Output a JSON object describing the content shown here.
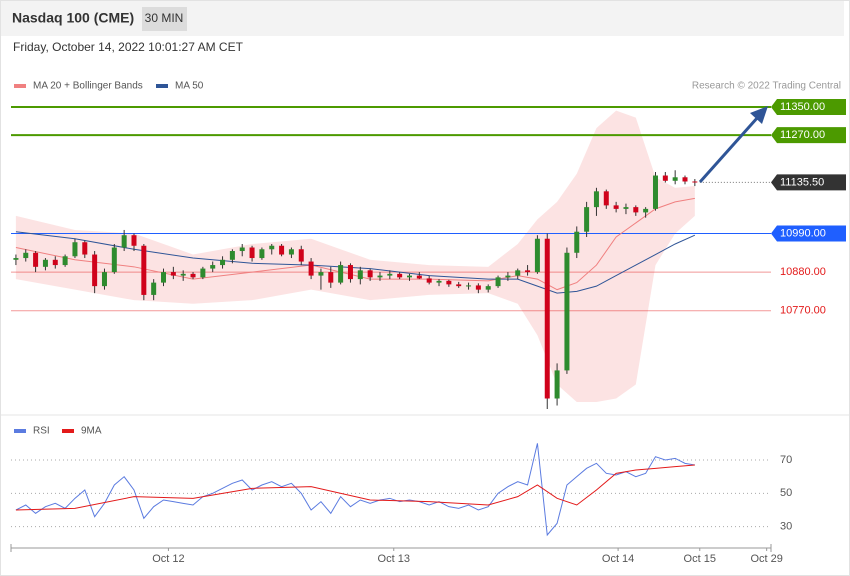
{
  "header": {
    "title": "Nasdaq 100 (CME)",
    "interval": "30 MIN",
    "datetime": "Friday, October 14, 2022 10:01:27 AM CET"
  },
  "chart_data": [
    {
      "type": "candlestick",
      "credit": "Research © 2022 Trading Central",
      "up_color": "#2e8b2e",
      "down_color": "#d0021b",
      "xlim": [
        -0.5,
        76.74
      ],
      "ylim": [
        10473,
        11484
      ],
      "ohlc": [
        [
          10915,
          10930,
          10900,
          10920
        ],
        [
          10920,
          10945,
          10910,
          10935
        ],
        [
          10935,
          10940,
          10880,
          10895
        ],
        [
          10895,
          10920,
          10885,
          10915
        ],
        [
          10915,
          10925,
          10890,
          10900
        ],
        [
          10900,
          10930,
          10895,
          10925
        ],
        [
          10925,
          10975,
          10920,
          10965
        ],
        [
          10965,
          10970,
          10920,
          10930
        ],
        [
          10930,
          10940,
          10820,
          10840
        ],
        [
          10840,
          10890,
          10830,
          10880
        ],
        [
          10880,
          10960,
          10875,
          10950
        ],
        [
          10950,
          11000,
          10940,
          10985
        ],
        [
          10985,
          10990,
          10940,
          10955
        ],
        [
          10955,
          10960,
          10800,
          10815
        ],
        [
          10815,
          10860,
          10800,
          10850
        ],
        [
          10850,
          10890,
          10840,
          10880
        ],
        [
          10880,
          10895,
          10860,
          10870
        ],
        [
          10870,
          10885,
          10855,
          10875
        ],
        [
          10875,
          10880,
          10860,
          10865
        ],
        [
          10865,
          10895,
          10860,
          10890
        ],
        [
          10890,
          10910,
          10880,
          10900
        ],
        [
          10900,
          10925,
          10890,
          10915
        ],
        [
          10915,
          10945,
          10905,
          10940
        ],
        [
          10940,
          10960,
          10925,
          10950
        ],
        [
          10950,
          10955,
          10910,
          10920
        ],
        [
          10920,
          10950,
          10915,
          10945
        ],
        [
          10945,
          10960,
          10930,
          10955
        ],
        [
          10955,
          10960,
          10925,
          10930
        ],
        [
          10930,
          10950,
          10920,
          10945
        ],
        [
          10945,
          10955,
          10900,
          10910
        ],
        [
          10910,
          10920,
          10860,
          10870
        ],
        [
          10870,
          10890,
          10830,
          10880
        ],
        [
          10880,
          10895,
          10835,
          10850
        ],
        [
          10850,
          10910,
          10845,
          10900
        ],
        [
          10900,
          10905,
          10850,
          10860
        ],
        [
          10860,
          10895,
          10845,
          10885
        ],
        [
          10885,
          10890,
          10855,
          10865
        ],
        [
          10865,
          10880,
          10855,
          10870
        ],
        [
          10870,
          10885,
          10860,
          10875
        ],
        [
          10875,
          10880,
          10860,
          10865
        ],
        [
          10865,
          10875,
          10855,
          10870
        ],
        [
          10870,
          10880,
          10860,
          10862
        ],
        [
          10862,
          10870,
          10845,
          10850
        ],
        [
          10850,
          10860,
          10840,
          10855
        ],
        [
          10855,
          10858,
          10838,
          10845
        ],
        [
          10845,
          10852,
          10835,
          10840
        ],
        [
          10840,
          10850,
          10830,
          10842
        ],
        [
          10842,
          10848,
          10820,
          10830
        ],
        [
          10830,
          10845,
          10822,
          10840
        ],
        [
          10840,
          10870,
          10835,
          10865
        ],
        [
          10865,
          10880,
          10855,
          10870
        ],
        [
          10870,
          10890,
          10860,
          10885
        ],
        [
          10885,
          10900,
          10870,
          10880
        ],
        [
          10880,
          10985,
          10875,
          10975
        ],
        [
          10975,
          10990,
          10490,
          10520
        ],
        [
          10520,
          10620,
          10500,
          10600
        ],
        [
          10600,
          10950,
          10590,
          10935
        ],
        [
          10935,
          11010,
          10920,
          10995
        ],
        [
          10995,
          11080,
          10980,
          11065
        ],
        [
          11065,
          11120,
          11040,
          11110
        ],
        [
          11110,
          11115,
          11060,
          11070
        ],
        [
          11070,
          11080,
          11050,
          11060
        ],
        [
          11060,
          11075,
          11045,
          11065
        ],
        [
          11065,
          11070,
          11040,
          11050
        ],
        [
          11050,
          11065,
          11035,
          11060
        ],
        [
          11060,
          11165,
          11055,
          11155
        ],
        [
          11155,
          11165,
          11135,
          11140
        ],
        [
          11140,
          11170,
          11130,
          11150
        ],
        [
          11150,
          11155,
          11130,
          11138
        ],
        [
          11138,
          11145,
          11125,
          11135.5
        ]
      ],
      "series": [
        {
          "name": "MA 20 + Bollinger Bands",
          "color": "#f08080",
          "x": [
            0,
            6,
            12,
            18,
            24,
            30,
            36,
            42,
            48,
            51,
            53,
            55,
            57,
            59,
            61,
            63,
            65,
            67,
            69
          ],
          "values": [
            10950,
            10915,
            10895,
            10860,
            10880,
            10900,
            10860,
            10860,
            10855,
            10870,
            10860,
            10830,
            10850,
            10900,
            10980,
            11020,
            11060,
            11080,
            11090
          ],
          "upper": [
            11040,
            11000,
            10990,
            10930,
            10960,
            10975,
            10915,
            10900,
            10895,
            10960,
            11030,
            11080,
            11160,
            11290,
            11340,
            11320,
            11150,
            11120,
            11125
          ],
          "lower": [
            10860,
            10830,
            10800,
            10790,
            10800,
            10830,
            10800,
            10815,
            10820,
            10790,
            10700,
            10560,
            10510,
            10510,
            10520,
            10560,
            10900,
            10990,
            11040
          ]
        },
        {
          "name": "MA 50",
          "color": "#2f5597",
          "x": [
            0,
            6,
            12,
            18,
            24,
            30,
            36,
            42,
            48,
            51,
            53,
            55,
            57,
            59,
            61,
            63,
            65,
            67,
            69
          ],
          "values": [
            10995,
            10975,
            10945,
            10920,
            10905,
            10900,
            10890,
            10870,
            10860,
            10860,
            10840,
            10820,
            10825,
            10840,
            10870,
            10900,
            10930,
            10960,
            10985
          ]
        }
      ],
      "levels": [
        {
          "value": 11350,
          "label": "11350.00",
          "color": "#4c9a00",
          "style": "box"
        },
        {
          "value": 11270,
          "label": "11270.00",
          "color": "#4c9a00",
          "style": "box"
        },
        {
          "value": 11135.5,
          "label": "11135.50",
          "color": "#333333",
          "style": "box-dotted"
        },
        {
          "value": 10990,
          "label": "10990.00",
          "color": "#1f5fff",
          "style": "box"
        },
        {
          "value": 10880,
          "label": "10880.00",
          "color": "#e31a1a",
          "style": "text"
        },
        {
          "value": 10770,
          "label": "10770.00",
          "color": "#e31a1a",
          "style": "text"
        }
      ]
    },
    {
      "type": "line",
      "xlim": [
        -0.5,
        76.74
      ],
      "ylim": [
        19,
        82
      ],
      "yticks": [
        30,
        50,
        70
      ],
      "grid": true,
      "xticks": [
        {
          "value": 15.5,
          "label": "Oct 12"
        },
        {
          "value": 38.4,
          "label": "Oct 13"
        },
        {
          "value": 61.2,
          "label": "Oct 14"
        },
        {
          "value": 69.5,
          "label": "Oct 15"
        },
        {
          "value": 76.3,
          "label": "Oct 29"
        }
      ],
      "series": [
        {
          "name": "RSI",
          "color": "#5b7be0",
          "x": [
            0,
            1,
            2,
            3,
            4,
            5,
            6,
            7,
            8,
            9,
            10,
            11,
            12,
            13,
            14,
            15,
            16,
            17,
            18,
            19,
            20,
            21,
            22,
            23,
            24,
            25,
            26,
            27,
            28,
            29,
            30,
            31,
            32,
            33,
            34,
            35,
            36,
            37,
            38,
            39,
            40,
            41,
            42,
            43,
            44,
            45,
            46,
            47,
            48,
            49,
            50,
            51,
            52,
            53,
            54,
            55,
            56,
            57,
            58,
            59,
            60,
            61,
            62,
            63,
            64,
            65,
            66,
            67,
            68,
            69
          ],
          "values": [
            40,
            43,
            38,
            42,
            44,
            41,
            47,
            52,
            36,
            44,
            55,
            60,
            52,
            35,
            42,
            46,
            45,
            44,
            43,
            48,
            50,
            53,
            56,
            58,
            52,
            55,
            57,
            54,
            56,
            50,
            40,
            45,
            38,
            48,
            42,
            46,
            44,
            46,
            47,
            45,
            46,
            45,
            43,
            45,
            42,
            41,
            43,
            40,
            42,
            50,
            54,
            57,
            55,
            80,
            25,
            32,
            55,
            60,
            65,
            68,
            62,
            61,
            63,
            60,
            62,
            72,
            70,
            71,
            68,
            67
          ]
        },
        {
          "name": "9MA",
          "color": "#e31a1a",
          "x": [
            0,
            6,
            12,
            18,
            24,
            30,
            36,
            42,
            48,
            51,
            53,
            55,
            57,
            59,
            61,
            63,
            65,
            67,
            69
          ],
          "values": [
            40,
            41,
            48,
            47,
            53,
            54,
            46,
            45,
            43,
            48,
            55,
            47,
            43,
            52,
            62,
            64,
            65,
            66,
            67
          ]
        }
      ]
    }
  ]
}
